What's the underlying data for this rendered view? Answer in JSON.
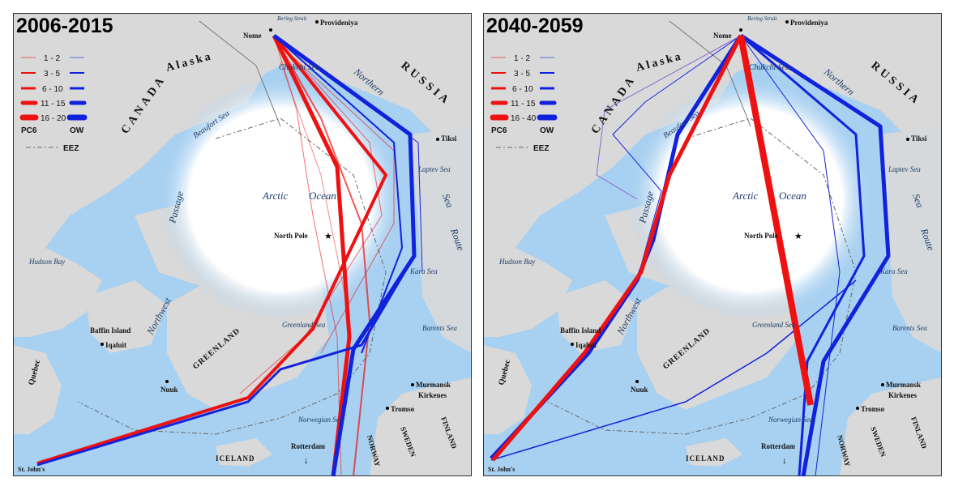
{
  "panels": [
    {
      "title": "2006-2015",
      "legend": {
        "ranges": [
          "1 - 2",
          "3 - 5",
          "6 - 10",
          "11 - 15",
          "16 - 20"
        ],
        "pc6_label": "PC6",
        "ow_label": "OW",
        "eez_label": "EEZ"
      },
      "labels": {
        "bering_strait": "Bering Strait",
        "providenia": "Provideniya",
        "nome": "Nome",
        "alaska": "Alaska",
        "canada": "CANADA",
        "russia": "RUSSIA",
        "northern": "Northern",
        "chukchi": "Chukchi Sea",
        "beaufort": "Beaufort Sea",
        "tiksi": "Tiksi",
        "laptev": "Laptev Sea",
        "arctic": "Arctic",
        "ocean": "Ocean",
        "north_pole": "North Pole",
        "sea": "Sea",
        "route": "Route",
        "kara": "Kara Sea",
        "hudson": "Hudson Bay",
        "baffin": "Baffin Island",
        "iqaluit": "Iqaluit",
        "northwest": "Northwest",
        "passage": "Passage",
        "quebec": "Quebec",
        "greenland": "GREENLAND",
        "greenland_sea": "Greenland Sea",
        "barents": "Barents Sea",
        "nuuk": "Nuuk",
        "murmansk": "Murmansk",
        "kirkenes": "Kirkenes",
        "tromso": "Tromso",
        "norwegian": "Norwegian Sea",
        "finland": "FINLAND",
        "sweden": "SWEDEN",
        "norway": "NORWAY",
        "iceland": "ICELAND",
        "rotterdam": "Rotterdam",
        "st_johns": "St. John's"
      }
    },
    {
      "title": "2040-2059",
      "legend": {
        "ranges": [
          "1 - 2",
          "3 - 5",
          "6 - 10",
          "11 - 15",
          "16 - 40"
        ],
        "pc6_label": "PC6",
        "ow_label": "OW",
        "eez_label": "EEZ"
      },
      "labels": {
        "bering_strait": "Bering Strait",
        "providenia": "Provideniya",
        "nome": "Nome",
        "alaska": "Alaska",
        "canada": "CANADA",
        "russia": "RUSSIA",
        "northern": "Northern",
        "chukchi": "Chukchi Sea",
        "beaufort": "Beaufort Sea",
        "tiksi": "Tiksi",
        "laptev": "Laptev Sea",
        "arctic": "Arctic",
        "ocean": "Ocean",
        "north_pole": "North Pole",
        "sea": "Sea",
        "route": "Route",
        "kara": "Kara Sea",
        "hudson": "Hudson Bay",
        "baffin": "Baffin Island",
        "iqaluit": "Iqaluit",
        "northwest": "Northwest",
        "passage": "Passage",
        "quebec": "Quebec",
        "greenland": "GREENLAND",
        "greenland_sea": "Greenland Sea",
        "barents": "Barents Sea",
        "nuuk": "Nuuk",
        "murmansk": "Murmansk",
        "kirkenes": "Kirkenes",
        "tromso": "Tromso",
        "norwegian": "Norwegian Sea",
        "finland": "FINLAND",
        "sweden": "SWEDEN",
        "norway": "NORWAY",
        "iceland": "ICELAND",
        "rotterdam": "Rotterdam",
        "st_johns": "St. John's"
      }
    }
  ],
  "colors": {
    "pc6": "#ee1111",
    "ow": "#1122dd",
    "land": "#d9d9d9",
    "water": "#a8d0f0",
    "ice": "#ffffff"
  }
}
